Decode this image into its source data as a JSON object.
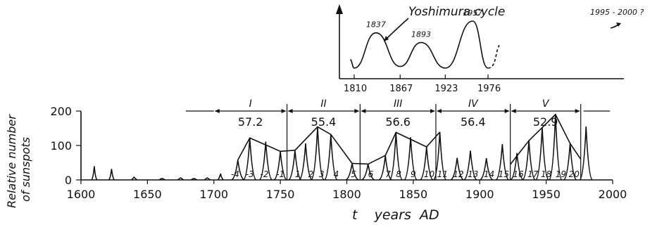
{
  "chart_data": [
    {
      "type": "line",
      "title": "Yoshimura cycle",
      "x_ticks": [
        "1810",
        "1867",
        "1923",
        "1976"
      ],
      "peaks": [
        {
          "label": "1837",
          "year": 1837
        },
        {
          "label": "1893",
          "year": 1893
        },
        {
          "label": "1957",
          "year": 1957
        }
      ],
      "forecast_label": "1995 - 2000 ?",
      "series": [
        {
          "x": [
            1805,
            1810,
            1837,
            1867,
            1893,
            1923,
            1957,
            1976,
            1990
          ],
          "y": [
            0.28,
            0.12,
            0.78,
            0.15,
            0.6,
            0.12,
            1.0,
            0.12,
            0.55
          ]
        }
      ]
    },
    {
      "type": "line",
      "xlabel": "t    years  AD",
      "ylabel_lines": [
        "Relative number",
        "of sunspots"
      ],
      "xlim": [
        1600,
        2000
      ],
      "ylim": [
        0,
        200
      ],
      "x_ticks": [
        1600,
        1650,
        1700,
        1750,
        1800,
        1850,
        1900,
        1950,
        2000
      ],
      "y_ticks": [
        0,
        100,
        200
      ],
      "periods": [
        {
          "label": "I",
          "value": "57.2",
          "start": 1700,
          "end": 1755
        },
        {
          "label": "II",
          "value": "55.4",
          "start": 1755,
          "end": 1810
        },
        {
          "label": "III",
          "value": "56.6",
          "start": 1810,
          "end": 1867
        },
        {
          "label": "IV",
          "value": "56.4",
          "start": 1867,
          "end": 1923
        },
        {
          "label": "V",
          "value": "52.9",
          "start": 1923,
          "end": 1976
        }
      ],
      "cycle_labels": [
        {
          "text": "-4",
          "x": 1716
        },
        {
          "text": "-3",
          "x": 1727
        },
        {
          "text": "-2",
          "x": 1738
        },
        {
          "text": "-1",
          "x": 1750
        },
        {
          "text": "1",
          "x": 1763
        },
        {
          "text": "2",
          "x": 1773
        },
        {
          "text": "3",
          "x": 1781
        },
        {
          "text": "4",
          "x": 1792
        },
        {
          "text": "5",
          "x": 1805
        },
        {
          "text": "6",
          "x": 1818
        },
        {
          "text": "7",
          "x": 1831
        },
        {
          "text": "8",
          "x": 1839
        },
        {
          "text": "9",
          "x": 1850
        },
        {
          "text": "10",
          "x": 1862
        },
        {
          "text": "11",
          "x": 1872
        },
        {
          "text": "12",
          "x": 1884
        },
        {
          "text": "13",
          "x": 1895
        },
        {
          "text": "14",
          "x": 1907
        },
        {
          "text": "15",
          "x": 1918
        },
        {
          "text": "16",
          "x": 1929
        },
        {
          "text": "17",
          "x": 1940
        },
        {
          "text": "18",
          "x": 1950
        },
        {
          "text": "19",
          "x": 1961
        },
        {
          "text": "20",
          "x": 1971
        }
      ],
      "cycle_peaks": [
        {
          "x": 1718,
          "y": 58
        },
        {
          "x": 1727,
          "y": 122
        },
        {
          "x": 1739,
          "y": 111
        },
        {
          "x": 1750,
          "y": 83
        },
        {
          "x": 1761,
          "y": 86
        },
        {
          "x": 1769,
          "y": 106
        },
        {
          "x": 1778,
          "y": 154
        },
        {
          "x": 1788,
          "y": 132
        },
        {
          "x": 1804,
          "y": 48
        },
        {
          "x": 1816,
          "y": 46
        },
        {
          "x": 1829,
          "y": 71
        },
        {
          "x": 1837,
          "y": 138
        },
        {
          "x": 1848,
          "y": 124
        },
        {
          "x": 1860,
          "y": 96
        },
        {
          "x": 1870,
          "y": 139
        },
        {
          "x": 1883,
          "y": 64
        },
        {
          "x": 1893,
          "y": 85
        },
        {
          "x": 1905,
          "y": 63
        },
        {
          "x": 1917,
          "y": 104
        },
        {
          "x": 1928,
          "y": 78
        },
        {
          "x": 1937,
          "y": 114
        },
        {
          "x": 1947,
          "y": 152
        },
        {
          "x": 1957,
          "y": 190
        },
        {
          "x": 1968,
          "y": 106
        },
        {
          "x": 1980,
          "y": 155
        }
      ],
      "early_spikes": [
        {
          "x": 1610,
          "y": 40
        },
        {
          "x": 1623,
          "y": 32
        },
        {
          "x": 1640,
          "y": 8
        },
        {
          "x": 1661,
          "y": 4
        },
        {
          "x": 1675,
          "y": 6
        },
        {
          "x": 1685,
          "y": 4
        },
        {
          "x": 1695,
          "y": 6
        },
        {
          "x": 1705,
          "y": 18
        }
      ],
      "envelope": [
        [
          1718,
          58
        ],
        [
          1727,
          122
        ],
        [
          1750,
          83
        ],
        [
          1761,
          86
        ],
        [
          1778,
          154
        ],
        [
          1788,
          132
        ],
        [
          1804,
          48
        ],
        [
          1816,
          46
        ],
        [
          1829,
          71
        ],
        [
          1837,
          138
        ],
        [
          1860,
          96
        ],
        [
          1870,
          139
        ]
      ],
      "envelope2": [
        [
          1923,
          45
        ],
        [
          1937,
          114
        ],
        [
          1947,
          152
        ],
        [
          1957,
          190
        ],
        [
          1968,
          106
        ],
        [
          1976,
          60
        ]
      ]
    }
  ]
}
